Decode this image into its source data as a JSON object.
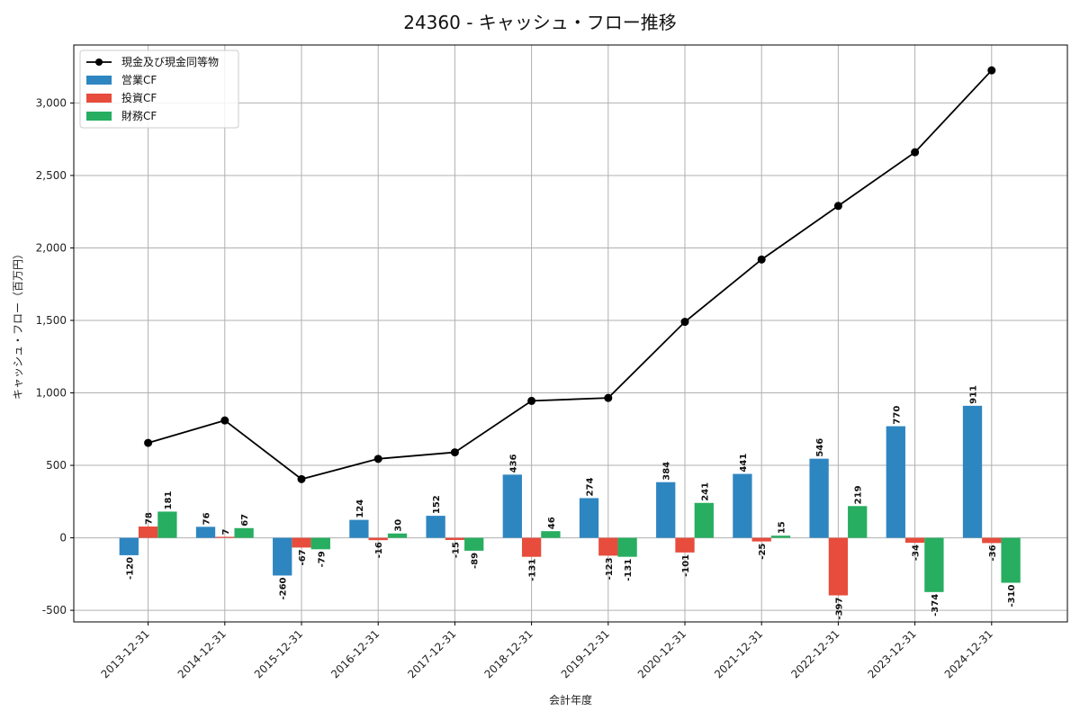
{
  "chart_data": {
    "type": "bar",
    "title": "24360 - キャッシュ・フロー推移",
    "xlabel": "会計年度",
    "ylabel": "キャッシュ・フロー（百万円）",
    "ylim": [
      -580,
      3400
    ],
    "yticks": [
      -500,
      0,
      500,
      1000,
      1500,
      2000,
      2500,
      3000
    ],
    "ytick_labels": [
      "-500",
      "0",
      "500",
      "1,000",
      "1,500",
      "2,000",
      "2,500",
      "3,000"
    ],
    "grid": true,
    "legend_position": "top-left",
    "categories": [
      "2013-12-31",
      "2014-12-31",
      "2015-12-31",
      "2016-12-31",
      "2017-12-31",
      "2018-12-31",
      "2019-12-31",
      "2020-12-31",
      "2021-12-31",
      "2022-12-31",
      "2023-12-31",
      "2024-12-31"
    ],
    "series": [
      {
        "name": "営業CF",
        "kind": "bar",
        "color": "#2e86c1",
        "values": [
          -120,
          76,
          -260,
          124,
          152,
          436,
          274,
          384,
          441,
          546,
          770,
          911
        ]
      },
      {
        "name": "投資CF",
        "kind": "bar",
        "color": "#e74c3c",
        "values": [
          78,
          7,
          -67,
          -16,
          -15,
          -131,
          -123,
          -101,
          -25,
          -397,
          -34,
          -36
        ]
      },
      {
        "name": "財務CF",
        "kind": "bar",
        "color": "#27ae60",
        "values": [
          181,
          67,
          -79,
          30,
          -89,
          46,
          -131,
          241,
          15,
          219,
          -374,
          -310
        ]
      },
      {
        "name": "現金及び現金同等物",
        "kind": "line",
        "color": "#000000",
        "values": [
          655,
          810,
          405,
          545,
          590,
          945,
          965,
          1490,
          1920,
          2290,
          2660,
          3225
        ]
      }
    ]
  }
}
